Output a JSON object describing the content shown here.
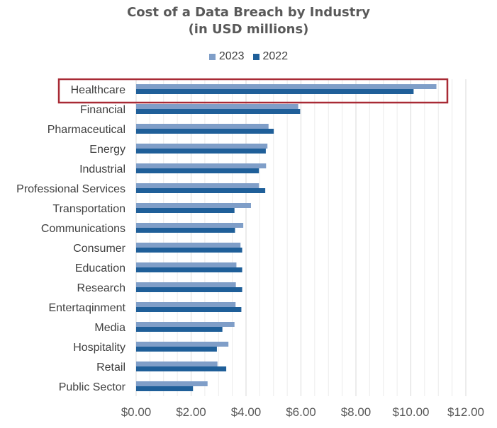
{
  "chart_data": {
    "type": "bar",
    "orientation": "horizontal",
    "title": "Cost of a Data Breach by Industry",
    "subtitle": "(in USD millions)",
    "categories": [
      "Healthcare",
      "Financial",
      "Pharmaceutical",
      "Energy",
      "Industrial",
      "Professional Services",
      "Transportation",
      "Communications",
      "Consumer",
      "Education",
      "Research",
      "Entertaqinment",
      "Media",
      "Hospitality",
      "Retail",
      "Public Sector"
    ],
    "series": [
      {
        "name": "2023",
        "color": "#7f9ec8",
        "values": [
          10.93,
          5.9,
          4.82,
          4.78,
          4.73,
          4.47,
          4.18,
          3.9,
          3.8,
          3.65,
          3.63,
          3.62,
          3.58,
          3.36,
          2.96,
          2.6
        ]
      },
      {
        "name": "2022",
        "color": "#1f5f99",
        "values": [
          10.1,
          5.97,
          5.01,
          4.72,
          4.47,
          4.7,
          3.58,
          3.6,
          3.86,
          3.86,
          3.86,
          3.83,
          3.14,
          2.94,
          3.28,
          2.07
        ]
      }
    ],
    "xlim": [
      0,
      12
    ],
    "xticks": [
      "$0.00",
      "$2.00",
      "$4.00",
      "$6.00",
      "$8.00",
      "$10.00",
      "$12.00"
    ],
    "legend_position": "top-center",
    "grid": true,
    "highlight": {
      "category": "Healthcare",
      "color": "#a82a35"
    }
  }
}
